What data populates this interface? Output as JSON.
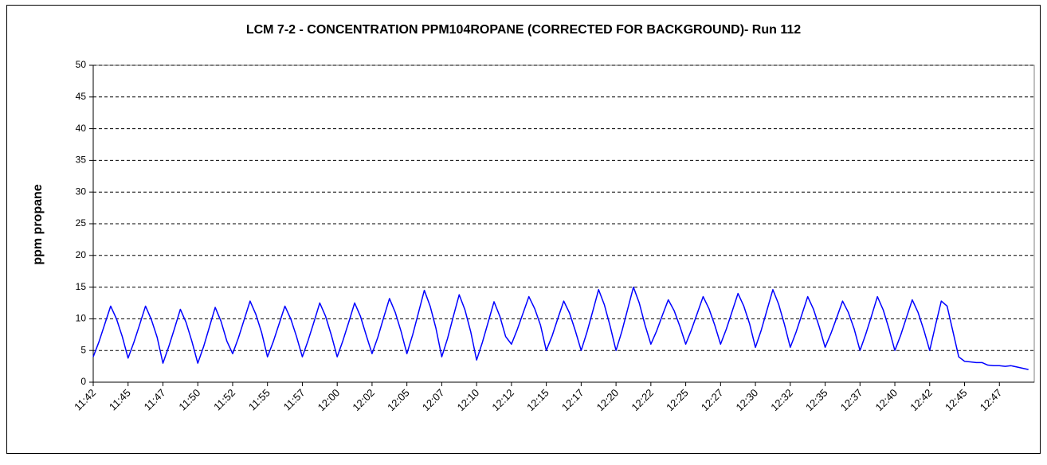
{
  "chart_data": {
    "type": "line",
    "title": "LCM 7-2 - CONCENTRATION PPM104ROPANE (CORRECTED FOR BACKGROUND)- Run 112",
    "y_label": "ppm propane",
    "color": "#0000ff",
    "grid": true,
    "ylim": [
      0,
      50
    ],
    "yticks": [
      0,
      5,
      10,
      15,
      20,
      25,
      30,
      35,
      40,
      45,
      50
    ],
    "categories": [
      "11:42",
      null,
      null,
      null,
      null,
      null,
      "11:45",
      null,
      null,
      null,
      null,
      null,
      "11:47",
      null,
      null,
      null,
      null,
      null,
      "11:50",
      null,
      null,
      null,
      null,
      null,
      "11:52",
      null,
      null,
      null,
      null,
      null,
      "11:55",
      null,
      null,
      null,
      null,
      null,
      "11:57",
      null,
      null,
      null,
      null,
      null,
      "12:00",
      null,
      null,
      null,
      null,
      null,
      "12:02",
      null,
      null,
      null,
      null,
      null,
      "12:05",
      null,
      null,
      null,
      null,
      null,
      "12:07",
      null,
      null,
      null,
      null,
      null,
      "12:10",
      null,
      null,
      null,
      null,
      null,
      "12:12",
      null,
      null,
      null,
      null,
      null,
      "12:15",
      null,
      null,
      null,
      null,
      null,
      "12:17",
      null,
      null,
      null,
      null,
      null,
      "12:20",
      null,
      null,
      null,
      null,
      null,
      "12:22",
      null,
      null,
      null,
      null,
      null,
      "12:25",
      null,
      null,
      null,
      null,
      null,
      "12:27",
      null,
      null,
      null,
      null,
      null,
      "12:30",
      null,
      null,
      null,
      null,
      null,
      "12:32",
      null,
      null,
      null,
      null,
      null,
      "12:35",
      null,
      null,
      null,
      null,
      null,
      "12:37",
      null,
      null,
      null,
      null,
      null,
      "12:40",
      null,
      null,
      null,
      null,
      null,
      "12:42",
      null,
      null,
      null,
      null,
      null,
      "12:45",
      null,
      null,
      null,
      null,
      null,
      "12:47",
      null,
      null,
      null,
      null,
      null
    ],
    "values": [
      4,
      6.4,
      9.2,
      12,
      10,
      7.2,
      3.8,
      6.3,
      9.1,
      12,
      9.9,
      7.1,
      3,
      5.6,
      8.5,
      11.5,
      9.4,
      6.4,
      3,
      5.6,
      8.7,
      11.8,
      9.6,
      6.5,
      4.5,
      7,
      9.9,
      12.8,
      10.7,
      7.8,
      4,
      6.4,
      9.2,
      12,
      10,
      7.2,
      4,
      6.6,
      9.5,
      12.5,
      10.4,
      7.4,
      4,
      6.6,
      9.5,
      12.5,
      10.4,
      7.4,
      4.5,
      7.1,
      10.2,
      13.2,
      11,
      8,
      4.5,
      7.5,
      11,
      14.5,
      12,
      8.5,
      4,
      6.9,
      10.4,
      13.8,
      11.4,
      7.9,
      3.5,
      6.3,
      9.5,
      12.7,
      10.4,
      7.2,
      6,
      8.3,
      10.9,
      13.5,
      11.6,
      9,
      5,
      7.3,
      10.1,
      12.8,
      10.9,
      8.1,
      5,
      7.9,
      11.2,
      14.6,
      12.2,
      8.8,
      5,
      8,
      11.5,
      15,
      12.5,
      9,
      6,
      8.1,
      10.6,
      13,
      11.3,
      8.8,
      6,
      8.3,
      10.9,
      13.5,
      11.6,
      9,
      6,
      8.4,
      11.2,
      14,
      12,
      9.2,
      5.5,
      8.2,
      11.4,
      14.6,
      12.3,
      9.1,
      5.5,
      7.9,
      10.7,
      13.5,
      11.5,
      8.7,
      5.5,
      7.7,
      10.2,
      12.8,
      11,
      8.4,
      5,
      7.6,
      10.5,
      13.5,
      11.4,
      8.4,
      5,
      7.4,
      10.2,
      13,
      11,
      8.2,
      5,
      9,
      12.8,
      12,
      8,
      4,
      3.3,
      3.2,
      3.1,
      3.1,
      2.7,
      2.6,
      2.6,
      2.5,
      2.6,
      2.4,
      2.2,
      2
    ]
  }
}
